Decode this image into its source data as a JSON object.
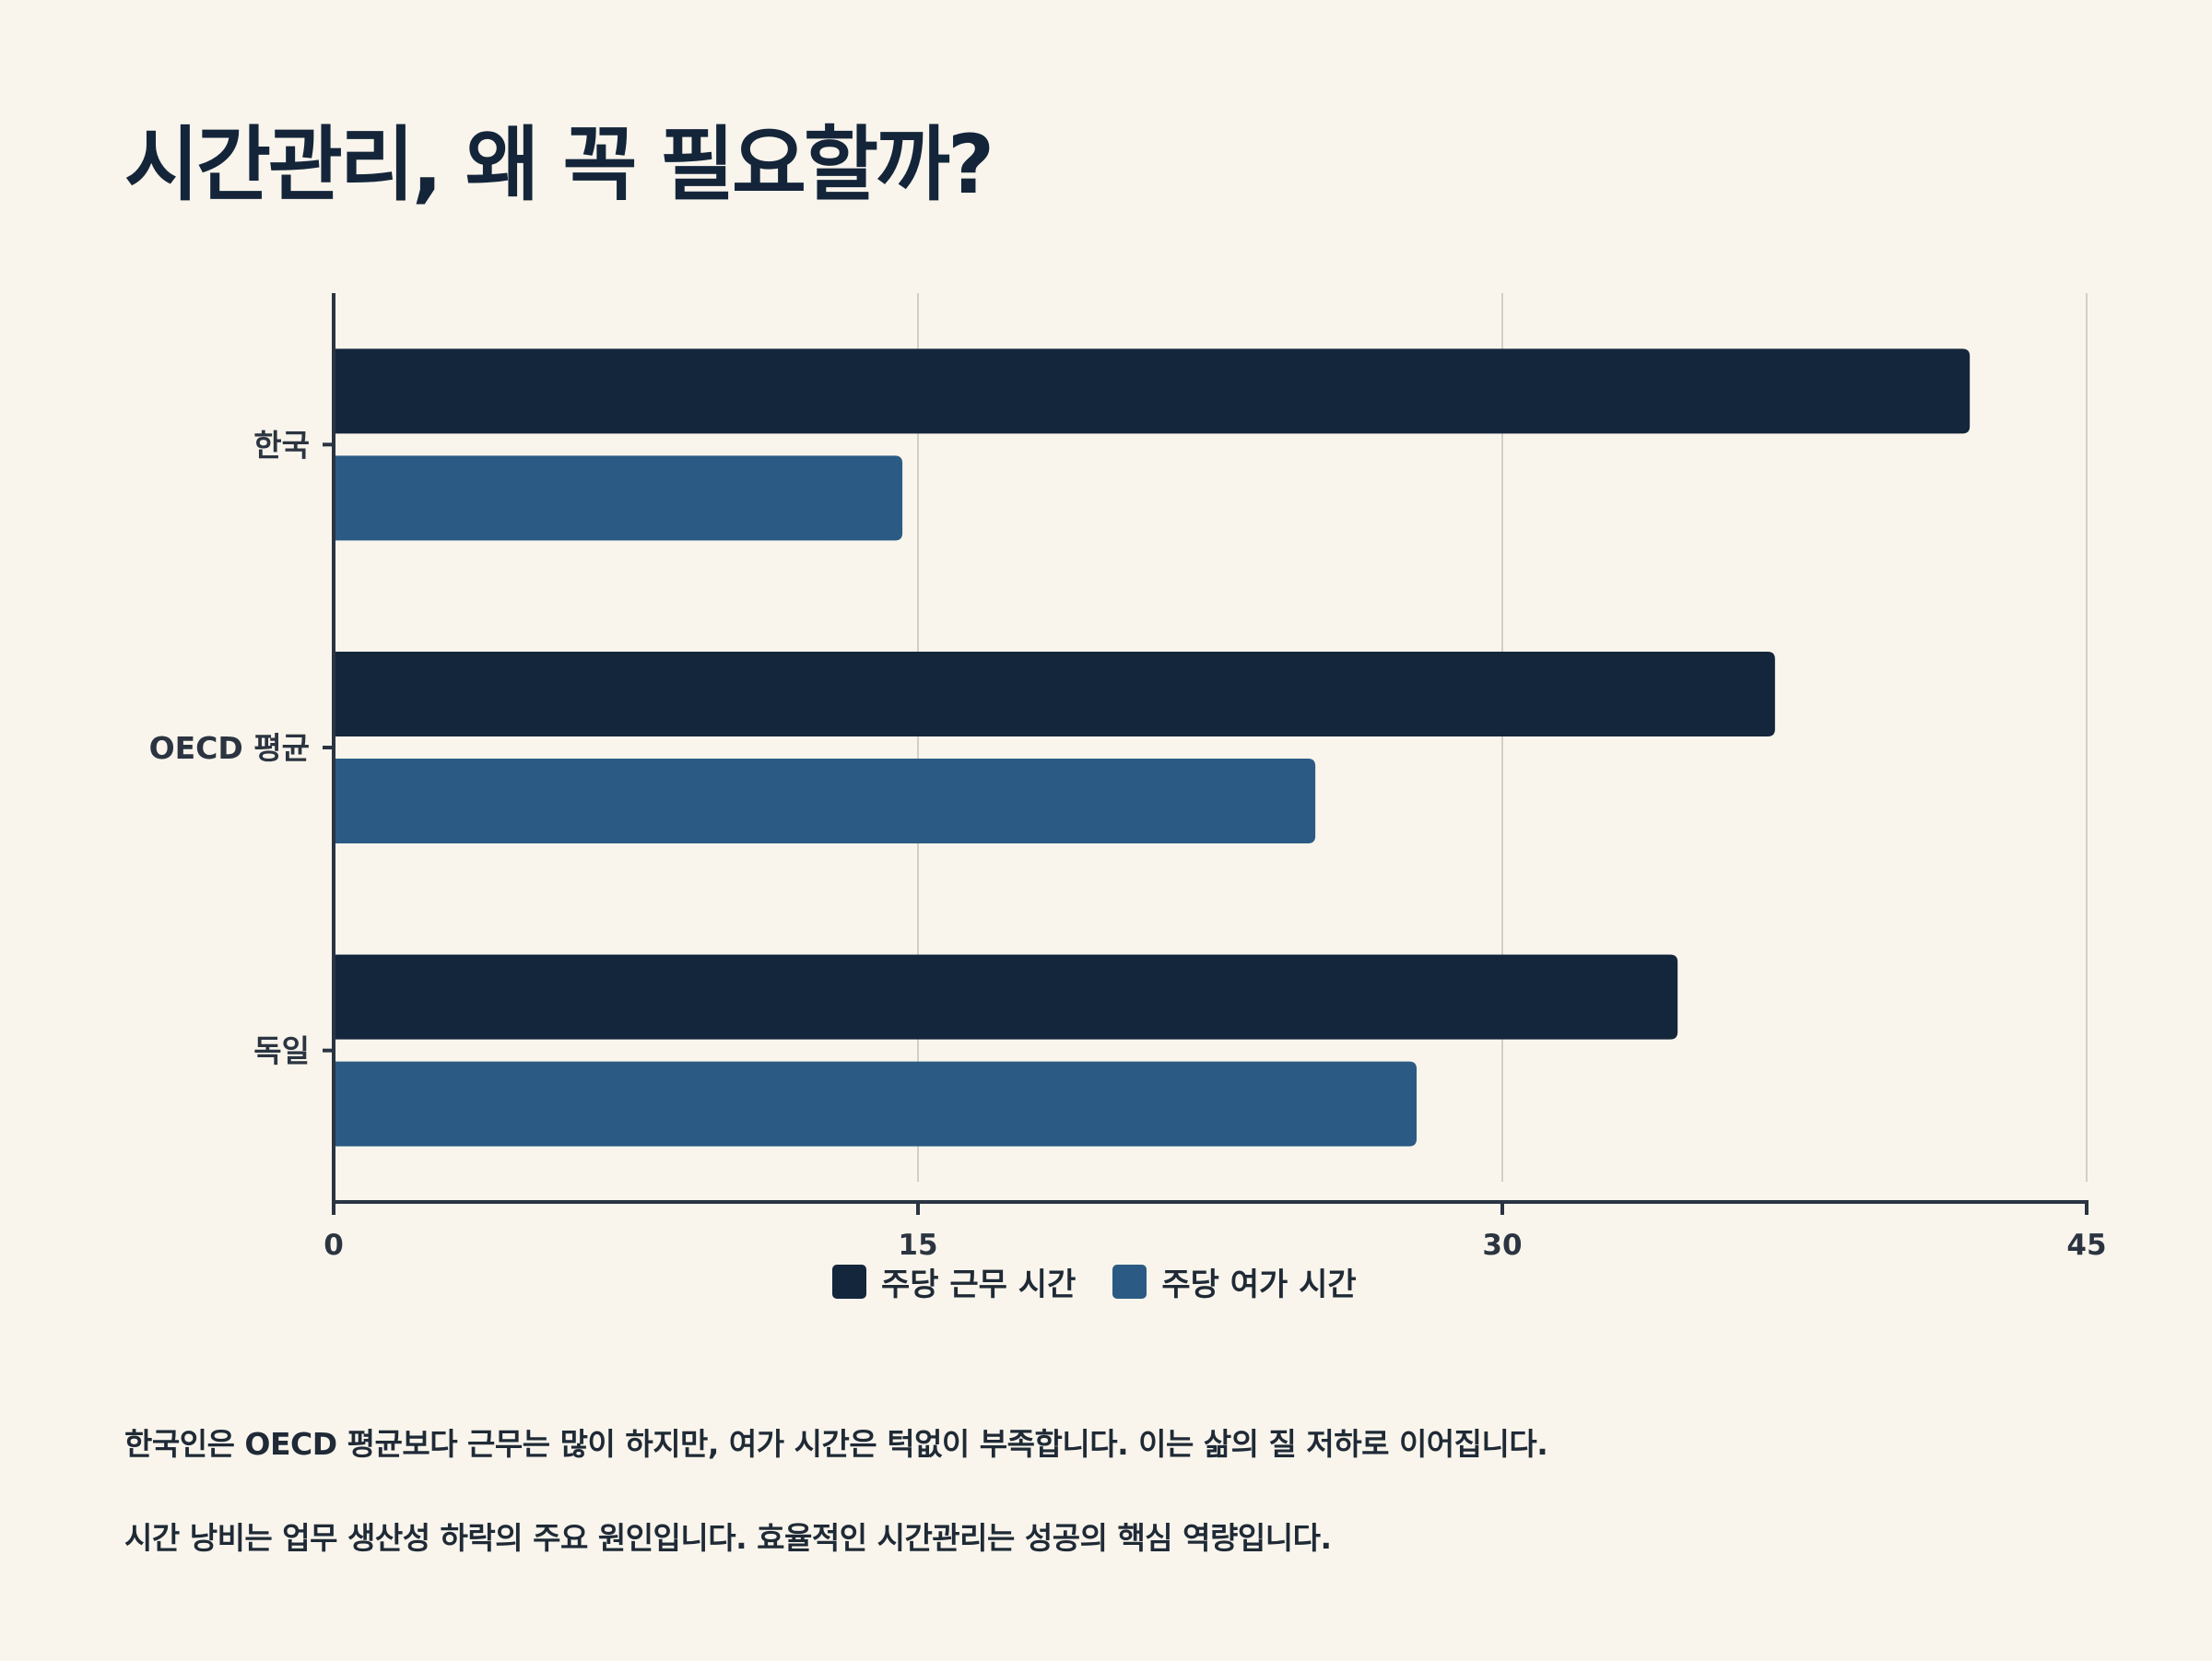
{
  "title": "시간관리, 왜 꼭 필요할까?",
  "colors": {
    "work": "#14263b",
    "leisure": "#2b5b84",
    "grid": "#d1d0c6",
    "axis": "#2a3442",
    "background": "#f9f5ec"
  },
  "chart_data": {
    "type": "bar",
    "orientation": "horizontal",
    "categories": [
      "한국",
      "OECD 평균",
      "독일"
    ],
    "series": [
      {
        "name": "주당 근무 시간",
        "color": "#14263b",
        "values": [
          42,
          37,
          34.5
        ]
      },
      {
        "name": "주당 여가 시간",
        "color": "#2b5b84",
        "values": [
          14.6,
          25.2,
          27.8
        ]
      }
    ],
    "xlim": [
      0,
      45
    ],
    "xticks": [
      "0",
      "15",
      "30",
      "45"
    ],
    "grid": true,
    "legend_position": "bottom-center"
  },
  "legend": {
    "work": "주당 근무 시간",
    "leisure": "주당 여가 시간"
  },
  "notes": [
    "한국인은 OECD 평균보다 근무는 많이 하지만, 여가 시간은 턱없이 부족합니다. 이는 삶의 질 저하로 이어집니다.",
    "시간 낭비는 업무 생산성 하락의 주요 원인입니다. 효율적인 시간관리는 성공의 핵심 역량입니다."
  ]
}
